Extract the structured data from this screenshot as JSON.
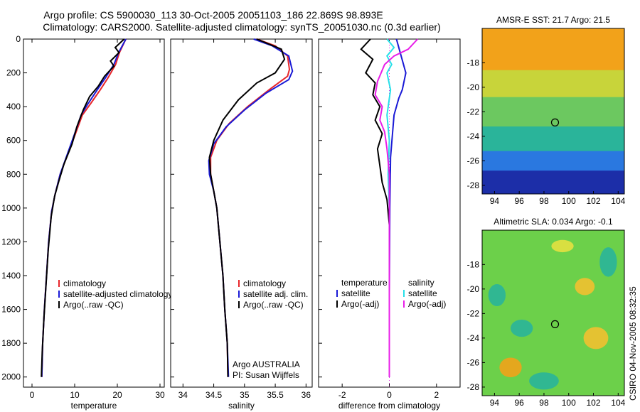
{
  "header": {
    "line1": "Argo profile: CS 5900030_113 30-Oct-2005 20051103_186 22.869S 98.893E",
    "line2": "Climatology: CARS2000. Satellite-adjusted climatology: synTS_20051030.nc (0.3d earlier)"
  },
  "side_text": "CSIRO 04-Nov-2005 08:32:35",
  "colors": {
    "climatology": "#e8262a",
    "satellite": "#1a1ad6",
    "argo": "#000000",
    "sal_satellite": "#27e0e8",
    "sal_argo": "#e81ee8"
  },
  "chart_data": [
    {
      "type": "line",
      "xlabel": "temperature",
      "ylabel": "",
      "xlim": [
        -2,
        31
      ],
      "ylim": [
        0,
        2060
      ],
      "xticks": [
        0,
        10,
        20,
        30
      ],
      "yticks": [
        0,
        200,
        400,
        600,
        800,
        1000,
        1200,
        1400,
        1600,
        1800,
        2000
      ],
      "y_reversed": true,
      "legend": [
        "climatology",
        "satellite-adjusted climatology",
        "Argo(..raw -QC)"
      ],
      "series": [
        {
          "name": "climatology",
          "color": "#e8262a",
          "points": [
            [
              22,
              0
            ],
            [
              20.5,
              80
            ],
            [
              19.6,
              150
            ],
            [
              17.8,
              230
            ],
            [
              16,
              300
            ],
            [
              13.8,
              380
            ],
            [
              11.8,
              450
            ],
            [
              10.2,
              560
            ],
            [
              8.4,
              680
            ],
            [
              6.6,
              800
            ],
            [
              5.4,
              920
            ],
            [
              4.6,
              1020
            ],
            [
              3.9,
              1200
            ],
            [
              3.4,
              1400
            ],
            [
              2.9,
              1600
            ],
            [
              2.5,
              1800
            ],
            [
              2.3,
              2000
            ]
          ]
        },
        {
          "name": "satellite-adjusted climatology",
          "color": "#1a1ad6",
          "points": [
            [
              22,
              0
            ],
            [
              20.3,
              80
            ],
            [
              19.2,
              150
            ],
            [
              17.2,
              230
            ],
            [
              15.3,
              300
            ],
            [
              13.2,
              380
            ],
            [
              11.5,
              450
            ],
            [
              10,
              560
            ],
            [
              8.3,
              680
            ],
            [
              6.6,
              800
            ],
            [
              5.4,
              920
            ],
            [
              4.6,
              1020
            ],
            [
              3.9,
              1200
            ],
            [
              3.4,
              1400
            ],
            [
              2.9,
              1600
            ],
            [
              2.5,
              1800
            ],
            [
              2.3,
              2000
            ]
          ]
        },
        {
          "name": "Argo(..raw -QC)",
          "color": "#000000",
          "points": [
            [
              21.6,
              0
            ],
            [
              19.5,
              50
            ],
            [
              20.4,
              80
            ],
            [
              18.4,
              130
            ],
            [
              19.2,
              160
            ],
            [
              17,
              220
            ],
            [
              15.5,
              280
            ],
            [
              13.5,
              340
            ],
            [
              12,
              420
            ],
            [
              10.5,
              520
            ],
            [
              9.4,
              620
            ],
            [
              7.5,
              740
            ],
            [
              6.3,
              840
            ],
            [
              5.3,
              930
            ],
            [
              4.5,
              1050
            ],
            [
              3.8,
              1250
            ],
            [
              3.3,
              1450
            ],
            [
              2.8,
              1650
            ],
            [
              2.4,
              1850
            ],
            [
              2.2,
              2000
            ]
          ]
        }
      ]
    },
    {
      "type": "line",
      "xlabel": "salinity",
      "ylabel": "",
      "xlim": [
        33.8,
        36.1
      ],
      "ylim": [
        0,
        2060
      ],
      "xticks": [
        34,
        34.5,
        35,
        35.5,
        36
      ],
      "y_reversed": true,
      "legend": [
        "climatology",
        "satellite adj. clim.",
        "Argo(..raw -QC)"
      ],
      "annotation": [
        "Argo AUSTRALIA",
        "PI: Susan Wijffels"
      ],
      "series": [
        {
          "name": "climatology",
          "color": "#e8262a",
          "points": [
            [
              35.2,
              0
            ],
            [
              35.5,
              40
            ],
            [
              35.7,
              100
            ],
            [
              35.73,
              180
            ],
            [
              35.7,
              220
            ],
            [
              35.4,
              300
            ],
            [
              35.05,
              400
            ],
            [
              34.75,
              500
            ],
            [
              34.55,
              600
            ],
            [
              34.45,
              700
            ],
            [
              34.45,
              800
            ],
            [
              34.5,
              900
            ],
            [
              34.55,
              1000
            ],
            [
              34.6,
              1200
            ],
            [
              34.65,
              1400
            ],
            [
              34.68,
              1600
            ],
            [
              34.72,
              1800
            ],
            [
              34.73,
              2000
            ]
          ]
        },
        {
          "name": "satellite adj. clim.",
          "color": "#1a1ad6",
          "points": [
            [
              35.15,
              0
            ],
            [
              35.45,
              40
            ],
            [
              35.72,
              100
            ],
            [
              35.78,
              190
            ],
            [
              35.72,
              240
            ],
            [
              35.35,
              320
            ],
            [
              35,
              420
            ],
            [
              34.7,
              520
            ],
            [
              34.5,
              620
            ],
            [
              34.42,
              720
            ],
            [
              34.43,
              800
            ],
            [
              34.5,
              900
            ],
            [
              34.55,
              1000
            ],
            [
              34.6,
              1200
            ],
            [
              34.65,
              1400
            ],
            [
              34.68,
              1600
            ],
            [
              34.72,
              1800
            ],
            [
              34.74,
              2000
            ]
          ]
        },
        {
          "name": "Argo(..raw -QC)",
          "color": "#000000",
          "points": [
            [
              35.2,
              0
            ],
            [
              35.6,
              60
            ],
            [
              35.65,
              120
            ],
            [
              35.5,
              200
            ],
            [
              35.2,
              260
            ],
            [
              34.9,
              360
            ],
            [
              34.65,
              480
            ],
            [
              34.5,
              600
            ],
            [
              34.43,
              700
            ],
            [
              34.45,
              800
            ],
            [
              34.5,
              900
            ],
            [
              34.55,
              1000
            ],
            [
              34.6,
              1200
            ],
            [
              34.65,
              1400
            ],
            [
              34.68,
              1600
            ],
            [
              34.72,
              1800
            ],
            [
              34.73,
              2000
            ]
          ]
        }
      ]
    },
    {
      "type": "line",
      "xlabel": "difference from climatology",
      "ylabel": "",
      "xlim": [
        -3,
        3
      ],
      "ylim": [
        0,
        2060
      ],
      "xticks": [
        -2,
        0,
        2
      ],
      "y_reversed": true,
      "legend": [
        "temperature",
        "satellite",
        "Argo(-adj)",
        "salinity",
        "satellite",
        "Argo(-adj)"
      ],
      "series": [
        {
          "name": "temperature satellite",
          "color": "#1a1ad6",
          "points": [
            [
              0.3,
              0
            ],
            [
              0.5,
              100
            ],
            [
              0.7,
              200
            ],
            [
              0.55,
              300
            ],
            [
              0.4,
              350
            ],
            [
              0.2,
              450
            ],
            [
              0.05,
              700
            ],
            [
              0.02,
              1000
            ],
            [
              0,
              1500
            ],
            [
              0,
              2000
            ]
          ]
        },
        {
          "name": "temperature Argo(-adj)",
          "color": "#000000",
          "points": [
            [
              -0.8,
              0
            ],
            [
              -1.2,
              60
            ],
            [
              -0.7,
              120
            ],
            [
              -1.0,
              200
            ],
            [
              -0.6,
              260
            ],
            [
              -0.7,
              330
            ],
            [
              -0.4,
              400
            ],
            [
              -0.6,
              480
            ],
            [
              -0.3,
              560
            ],
            [
              -0.5,
              650
            ],
            [
              -0.4,
              750
            ],
            [
              -0.3,
              850
            ],
            [
              -0.1,
              950
            ],
            [
              0,
              1100
            ],
            [
              0,
              1500
            ],
            [
              0,
              2000
            ]
          ]
        },
        {
          "name": "salinity satellite",
          "color": "#27e0e8",
          "points": [
            [
              -0.1,
              0
            ],
            [
              0.2,
              50
            ],
            [
              -0.1,
              100
            ],
            [
              0.1,
              150
            ],
            [
              -0.1,
              200
            ],
            [
              0.05,
              300
            ],
            [
              -0.1,
              450
            ],
            [
              0,
              600
            ],
            [
              -0.05,
              800
            ],
            [
              0,
              1000
            ],
            [
              0,
              1500
            ],
            [
              0,
              2000
            ]
          ]
        },
        {
          "name": "salinity Argo(-adj)",
          "color": "#e81ee8",
          "points": [
            [
              1.2,
              0
            ],
            [
              0.8,
              60
            ],
            [
              0.2,
              100
            ],
            [
              -0.2,
              150
            ],
            [
              -0.5,
              250
            ],
            [
              -0.6,
              330
            ],
            [
              -0.3,
              400
            ],
            [
              -0.4,
              480
            ],
            [
              -0.2,
              550
            ],
            [
              -0.1,
              650
            ],
            [
              0,
              800
            ],
            [
              0,
              1000
            ],
            [
              0,
              2000
            ]
          ]
        }
      ]
    },
    {
      "type": "heatmap",
      "title": "AMSR-E SST: 21.7 Argo: 21.5",
      "xlim": [
        93,
        104.5
      ],
      "ylim": [
        -28.7,
        -15.2
      ],
      "xticks": [
        94,
        96,
        98,
        100,
        102,
        104
      ],
      "yticks": [
        -18,
        -20,
        -22,
        -24,
        -26,
        -28
      ],
      "marker": {
        "x": 98.893,
        "y": -22.869
      },
      "bands": [
        {
          "from": -15.2,
          "to": -18.6,
          "color": "#f2a21a"
        },
        {
          "from": -18.6,
          "to": -20.8,
          "color": "#c8d43a"
        },
        {
          "from": -20.8,
          "to": -23.2,
          "color": "#6cc860"
        },
        {
          "from": -23.2,
          "to": -25.2,
          "color": "#2ab49a"
        },
        {
          "from": -25.2,
          "to": -26.8,
          "color": "#2a78e0"
        },
        {
          "from": -26.8,
          "to": -28.7,
          "color": "#1c2ea8"
        }
      ]
    },
    {
      "type": "heatmap",
      "title": "Altimetric SLA: 0.034 Argo: -0.1",
      "xlim": [
        93,
        104.5
      ],
      "ylim": [
        -28.7,
        -15.2
      ],
      "xticks": [
        94,
        96,
        98,
        100,
        102,
        104
      ],
      "yticks": [
        -18,
        -20,
        -22,
        -24,
        -26,
        -28
      ],
      "marker": {
        "x": 98.893,
        "y": -22.869
      },
      "base_color": "#6cd04a",
      "patches": [
        {
          "x": 101.3,
          "y": -19.8,
          "rx": 0.8,
          "ry": 0.7,
          "color": "#f2c030"
        },
        {
          "x": 102.2,
          "y": -24.0,
          "rx": 1.0,
          "ry": 0.9,
          "color": "#f2c030"
        },
        {
          "x": 95.3,
          "y": -26.4,
          "rx": 0.9,
          "ry": 0.8,
          "color": "#f2a21a"
        },
        {
          "x": 99.5,
          "y": -16.5,
          "rx": 0.9,
          "ry": 0.5,
          "color": "#e6e040"
        },
        {
          "x": 96.2,
          "y": -23.2,
          "rx": 0.9,
          "ry": 0.7,
          "color": "#2ab49a"
        },
        {
          "x": 98.0,
          "y": -27.5,
          "rx": 1.2,
          "ry": 0.7,
          "color": "#2ab49a"
        },
        {
          "x": 103.2,
          "y": -17.8,
          "rx": 0.7,
          "ry": 1.2,
          "color": "#2ab49a"
        },
        {
          "x": 94.2,
          "y": -20.5,
          "rx": 0.7,
          "ry": 0.9,
          "color": "#2ab49a"
        }
      ]
    }
  ]
}
